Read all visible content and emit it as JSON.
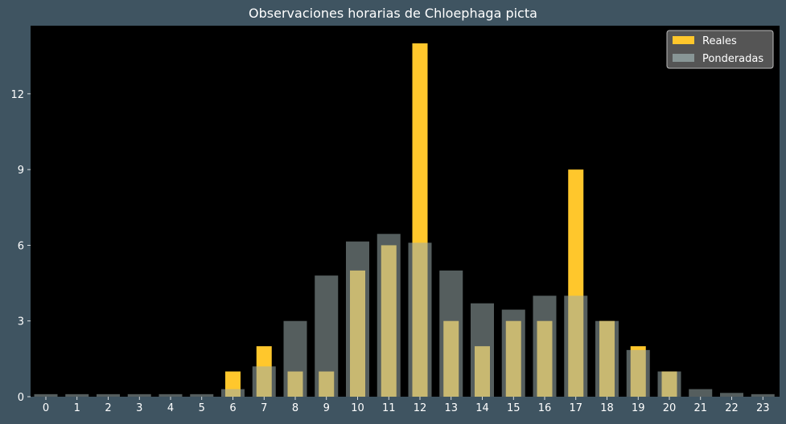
{
  "chart_data": {
    "type": "bar",
    "title": "Observaciones horarias de Chloephaga picta",
    "xlabel": "",
    "ylabel": "",
    "categories": [
      "0",
      "1",
      "2",
      "3",
      "4",
      "5",
      "6",
      "7",
      "8",
      "9",
      "10",
      "11",
      "12",
      "13",
      "14",
      "15",
      "16",
      "17",
      "18",
      "19",
      "20",
      "21",
      "22",
      "23"
    ],
    "series": [
      {
        "name": "Reales",
        "color": "#ffc72c",
        "values": [
          0,
          0,
          0,
          0,
          0,
          0,
          1,
          2,
          1,
          1,
          5,
          6,
          14,
          3,
          2,
          3,
          3,
          9,
          3,
          2,
          1,
          0,
          0,
          0
        ]
      },
      {
        "name": "Ponderadas",
        "color": "#9aacac",
        "values": [
          0.1,
          0.1,
          0.1,
          0.1,
          0.1,
          0.1,
          0.3,
          1.2,
          3.0,
          4.8,
          6.15,
          6.45,
          6.1,
          5.0,
          3.7,
          3.45,
          4.0,
          4.0,
          3.0,
          1.85,
          1.0,
          0.3,
          0.15,
          0.1
        ]
      }
    ],
    "yticks": [
      0,
      3,
      6,
      9,
      12
    ],
    "ylim": [
      0,
      14.7
    ],
    "grid": false,
    "legend": "top-right",
    "plot_background": "#000000",
    "figure_background": "#3f5461"
  }
}
